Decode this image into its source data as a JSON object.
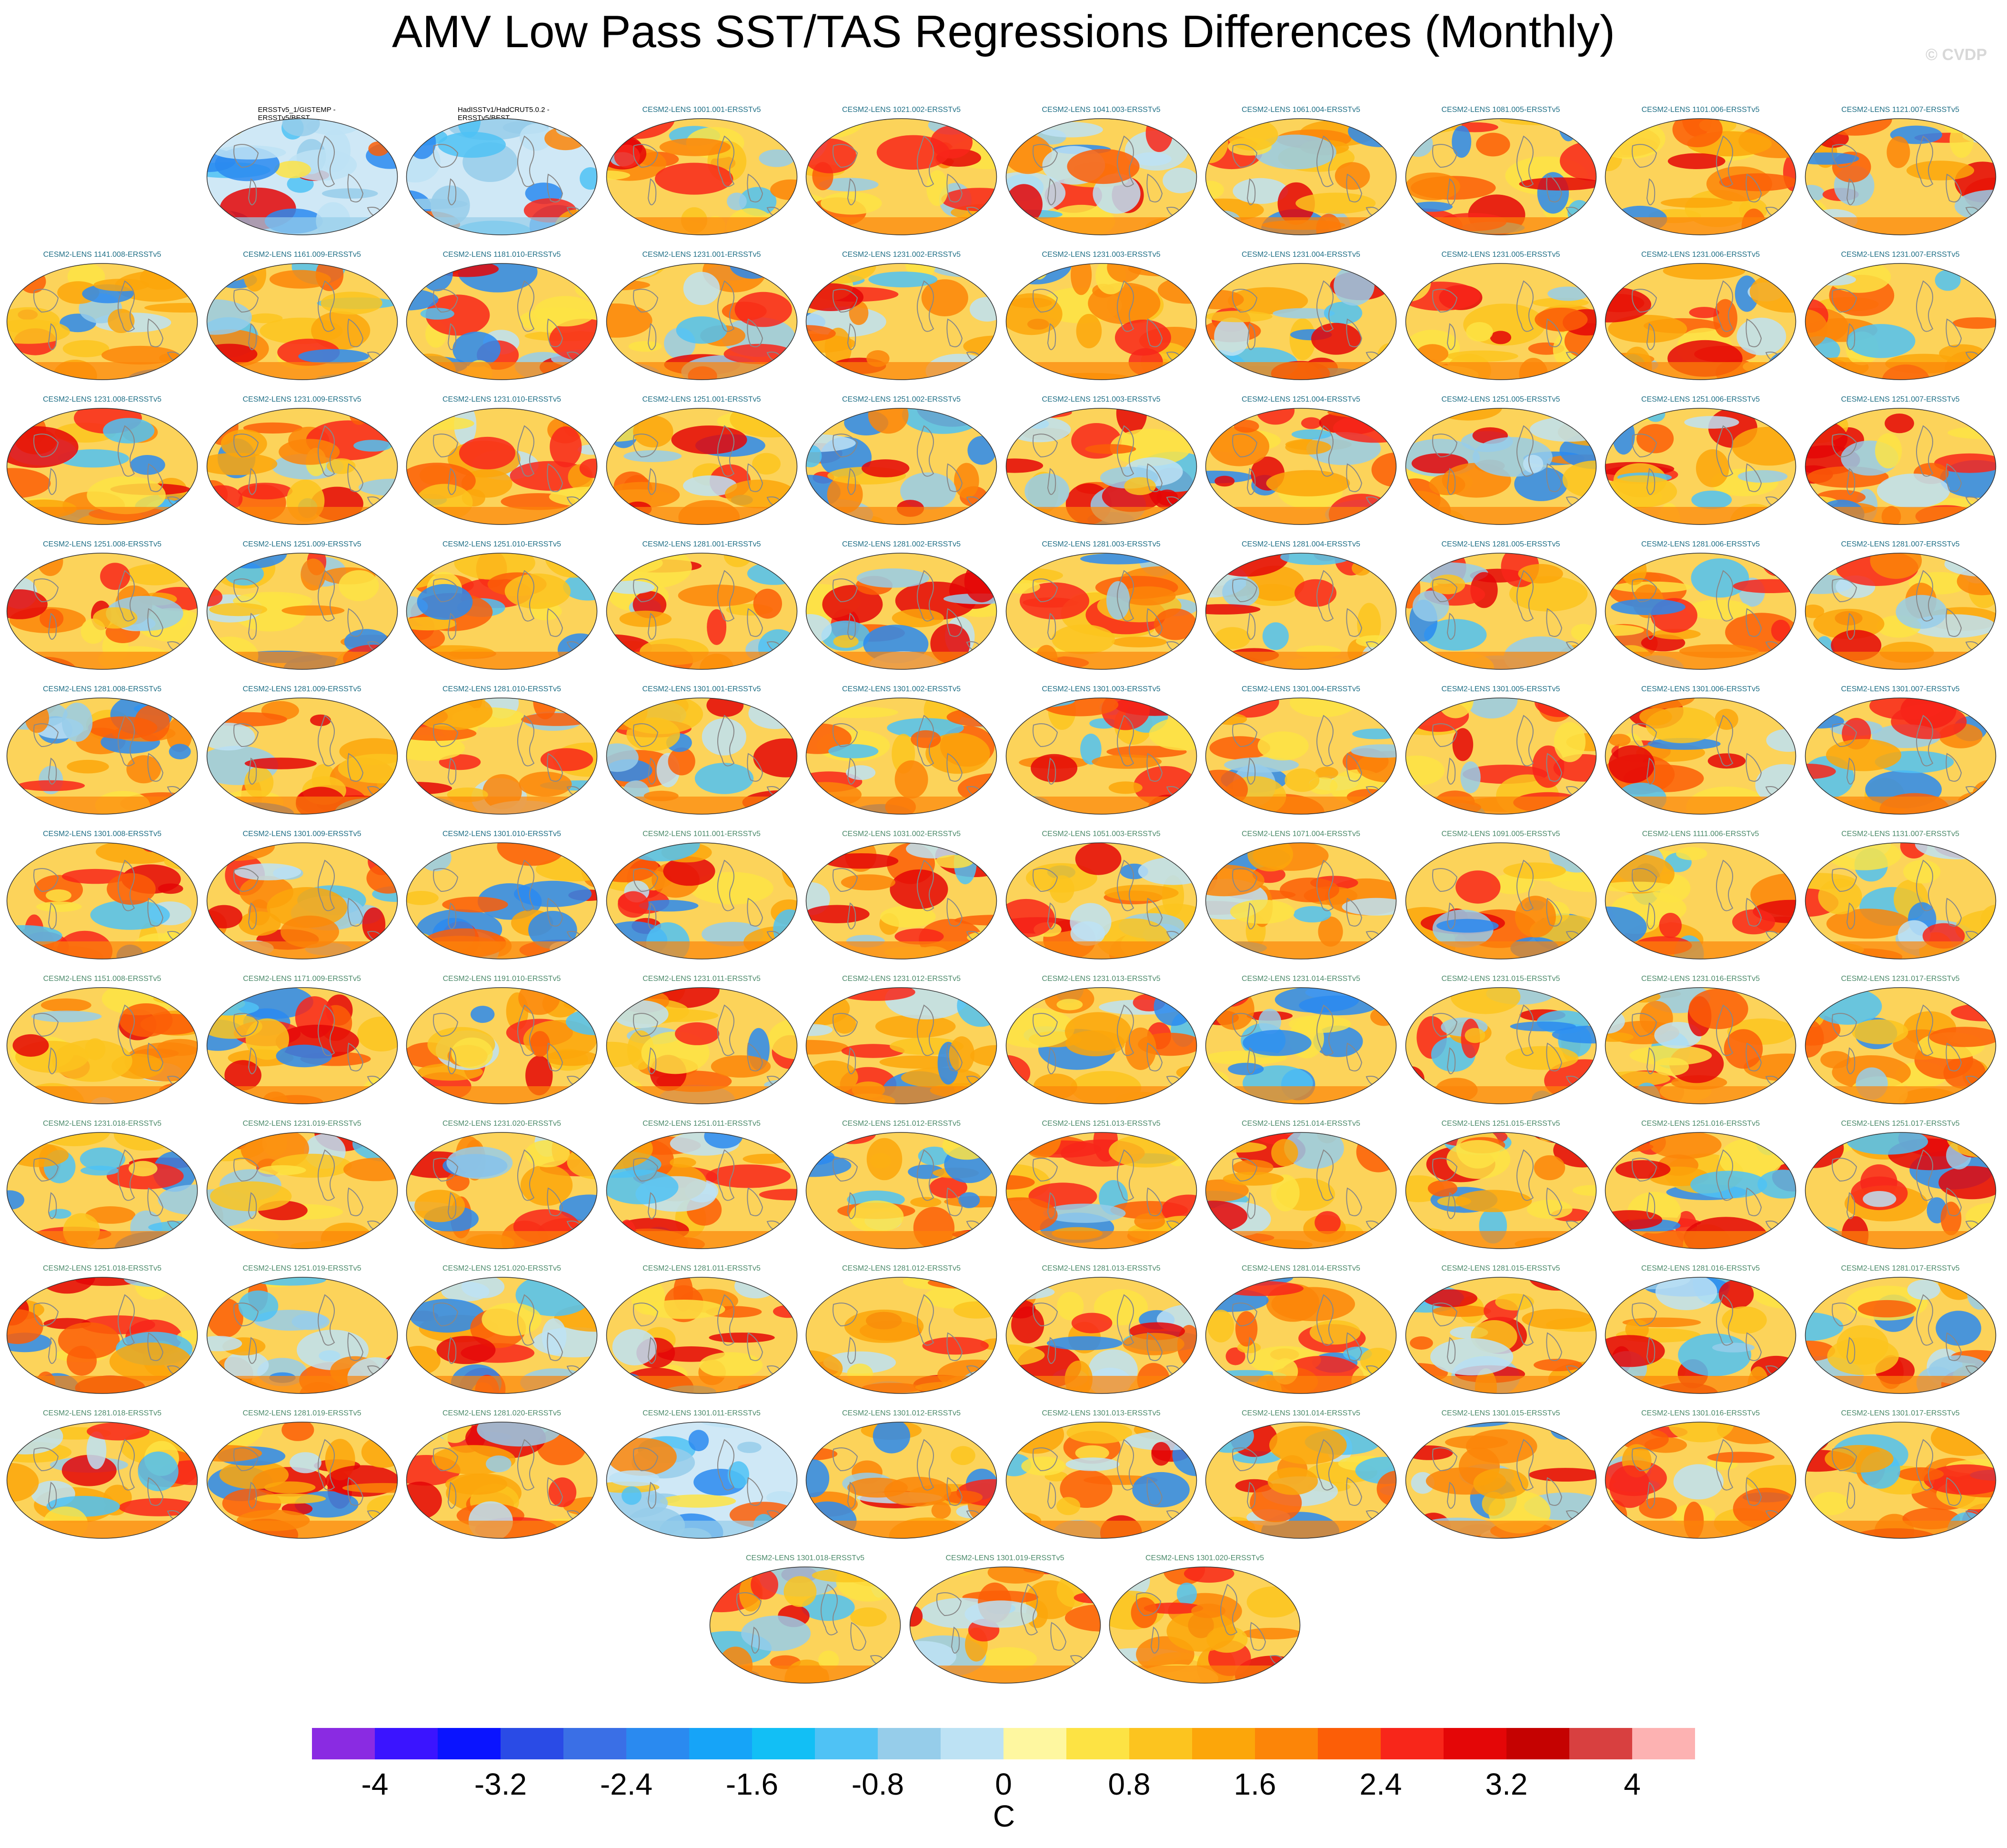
{
  "title": "AMV Low Pass SST/TAS Regressions Differences (Monthly)",
  "watermark": "© CVDP",
  "unit": "C",
  "colorbar": {
    "ticks": [
      "-4",
      "-3.2",
      "-2.4",
      "-1.6",
      "-0.8",
      "0",
      "0.8",
      "1.6",
      "2.4",
      "3.2",
      "4"
    ],
    "colors": [
      "#8a2be2",
      "#3b14ff",
      "#0a14ff",
      "#2a4be6",
      "#3a6fe6",
      "#2a8af0",
      "#16a4f8",
      "#12bff5",
      "#4fc2f5",
      "#96cdea",
      "#bde2f4",
      "#fef7a0",
      "#fde344",
      "#fcc41f",
      "#fca60a",
      "#fc8508",
      "#fc5e07",
      "#f8261a",
      "#e40607",
      "#c50201",
      "#d84040",
      "#fdb2b2"
    ]
  },
  "rows": [
    [
      {
        "label": "ERSSTv5_1/GISTEMP -\nERSSTv5/BEST",
        "kind": "obs"
      },
      {
        "label": "HadISSTv1/HadCRUT5.0.2 -\nERSSTv5/BEST",
        "kind": "obs"
      },
      {
        "label": "CESM2-LENS 1001.001-ERSSTv5"
      },
      {
        "label": "CESM2-LENS 1021.002-ERSSTv5"
      },
      {
        "label": "CESM2-LENS 1041.003-ERSSTv5"
      },
      {
        "label": "CESM2-LENS 1061.004-ERSSTv5"
      },
      {
        "label": "CESM2-LENS 1081.005-ERSSTv5"
      },
      {
        "label": "CESM2-LENS 1101.006-ERSSTv5"
      },
      {
        "label": "CESM2-LENS 1121.007-ERSSTv5"
      }
    ],
    [
      {
        "label": "CESM2-LENS 1141.008-ERSSTv5"
      },
      {
        "label": "CESM2-LENS 1161.009-ERSSTv5"
      },
      {
        "label": "CESM2-LENS 1181.010-ERSSTv5"
      },
      {
        "label": "CESM2-LENS 1231.001-ERSSTv5"
      },
      {
        "label": "CESM2-LENS 1231.002-ERSSTv5"
      },
      {
        "label": "CESM2-LENS 1231.003-ERSSTv5"
      },
      {
        "label": "CESM2-LENS 1231.004-ERSSTv5"
      },
      {
        "label": "CESM2-LENS 1231.005-ERSSTv5"
      },
      {
        "label": "CESM2-LENS 1231.006-ERSSTv5"
      },
      {
        "label": "CESM2-LENS 1231.007-ERSSTv5"
      }
    ],
    [
      {
        "label": "CESM2-LENS 1231.008-ERSSTv5"
      },
      {
        "label": "CESM2-LENS 1231.009-ERSSTv5"
      },
      {
        "label": "CESM2-LENS 1231.010-ERSSTv5"
      },
      {
        "label": "CESM2-LENS 1251.001-ERSSTv5"
      },
      {
        "label": "CESM2-LENS 1251.002-ERSSTv5"
      },
      {
        "label": "CESM2-LENS 1251.003-ERSSTv5"
      },
      {
        "label": "CESM2-LENS 1251.004-ERSSTv5"
      },
      {
        "label": "CESM2-LENS 1251.005-ERSSTv5"
      },
      {
        "label": "CESM2-LENS 1251.006-ERSSTv5"
      },
      {
        "label": "CESM2-LENS 1251.007-ERSSTv5"
      }
    ],
    [
      {
        "label": "CESM2-LENS 1251.008-ERSSTv5"
      },
      {
        "label": "CESM2-LENS 1251.009-ERSSTv5"
      },
      {
        "label": "CESM2-LENS 1251.010-ERSSTv5"
      },
      {
        "label": "CESM2-LENS 1281.001-ERSSTv5"
      },
      {
        "label": "CESM2-LENS 1281.002-ERSSTv5"
      },
      {
        "label": "CESM2-LENS 1281.003-ERSSTv5"
      },
      {
        "label": "CESM2-LENS 1281.004-ERSSTv5"
      },
      {
        "label": "CESM2-LENS 1281.005-ERSSTv5"
      },
      {
        "label": "CESM2-LENS 1281.006-ERSSTv5"
      },
      {
        "label": "CESM2-LENS 1281.007-ERSSTv5"
      }
    ],
    [
      {
        "label": "CESM2-LENS 1281.008-ERSSTv5"
      },
      {
        "label": "CESM2-LENS 1281.009-ERSSTv5"
      },
      {
        "label": "CESM2-LENS 1281.010-ERSSTv5"
      },
      {
        "label": "CESM2-LENS 1301.001-ERSSTv5"
      },
      {
        "label": "CESM2-LENS 1301.002-ERSSTv5"
      },
      {
        "label": "CESM2-LENS 1301.003-ERSSTv5"
      },
      {
        "label": "CESM2-LENS 1301.004-ERSSTv5"
      },
      {
        "label": "CESM2-LENS 1301.005-ERSSTv5"
      },
      {
        "label": "CESM2-LENS 1301.006-ERSSTv5"
      },
      {
        "label": "CESM2-LENS 1301.007-ERSSTv5"
      }
    ],
    [
      {
        "label": "CESM2-LENS 1301.008-ERSSTv5"
      },
      {
        "label": "CESM2-LENS 1301.009-ERSSTv5"
      },
      {
        "label": "CESM2-LENS 1301.010-ERSSTv5"
      },
      {
        "label": "CESM2-LENS 1011.001-ERSSTv5",
        "kind": "faded"
      },
      {
        "label": "CESM2-LENS 1031.002-ERSSTv5",
        "kind": "faded"
      },
      {
        "label": "CESM2-LENS 1051.003-ERSSTv5",
        "kind": "faded"
      },
      {
        "label": "CESM2-LENS 1071.004-ERSSTv5",
        "kind": "faded"
      },
      {
        "label": "CESM2-LENS 1091.005-ERSSTv5",
        "kind": "faded"
      },
      {
        "label": "CESM2-LENS 1111.006-ERSSTv5",
        "kind": "faded"
      },
      {
        "label": "CESM2-LENS 1131.007-ERSSTv5",
        "kind": "faded"
      }
    ],
    [
      {
        "label": "CESM2-LENS 1151.008-ERSSTv5",
        "kind": "faded"
      },
      {
        "label": "CESM2-LENS 1171.009-ERSSTv5",
        "kind": "faded"
      },
      {
        "label": "CESM2-LENS 1191.010-ERSSTv5",
        "kind": "faded"
      },
      {
        "label": "CESM2-LENS 1231.011-ERSSTv5",
        "kind": "faded"
      },
      {
        "label": "CESM2-LENS 1231.012-ERSSTv5",
        "kind": "faded"
      },
      {
        "label": "CESM2-LENS 1231.013-ERSSTv5",
        "kind": "faded"
      },
      {
        "label": "CESM2-LENS 1231.014-ERSSTv5",
        "kind": "faded"
      },
      {
        "label": "CESM2-LENS 1231.015-ERSSTv5",
        "kind": "faded"
      },
      {
        "label": "CESM2-LENS 1231.016-ERSSTv5",
        "kind": "faded"
      },
      {
        "label": "CESM2-LENS 1231.017-ERSSTv5",
        "kind": "faded"
      }
    ],
    [
      {
        "label": "CESM2-LENS 1231.018-ERSSTv5",
        "kind": "faded"
      },
      {
        "label": "CESM2-LENS 1231.019-ERSSTv5",
        "kind": "faded"
      },
      {
        "label": "CESM2-LENS 1231.020-ERSSTv5",
        "kind": "faded"
      },
      {
        "label": "CESM2-LENS 1251.011-ERSSTv5",
        "kind": "faded"
      },
      {
        "label": "CESM2-LENS 1251.012-ERSSTv5",
        "kind": "faded"
      },
      {
        "label": "CESM2-LENS 1251.013-ERSSTv5",
        "kind": "faded"
      },
      {
        "label": "CESM2-LENS 1251.014-ERSSTv5",
        "kind": "faded"
      },
      {
        "label": "CESM2-LENS 1251.015-ERSSTv5",
        "kind": "faded"
      },
      {
        "label": "CESM2-LENS 1251.016-ERSSTv5",
        "kind": "faded"
      },
      {
        "label": "CESM2-LENS 1251.017-ERSSTv5",
        "kind": "faded"
      }
    ],
    [
      {
        "label": "CESM2-LENS 1251.018-ERSSTv5",
        "kind": "faded"
      },
      {
        "label": "CESM2-LENS 1251.019-ERSSTv5",
        "kind": "faded"
      },
      {
        "label": "CESM2-LENS 1251.020-ERSSTv5",
        "kind": "faded"
      },
      {
        "label": "CESM2-LENS 1281.011-ERSSTv5",
        "kind": "faded"
      },
      {
        "label": "CESM2-LENS 1281.012-ERSSTv5",
        "kind": "faded"
      },
      {
        "label": "CESM2-LENS 1281.013-ERSSTv5",
        "kind": "faded"
      },
      {
        "label": "CESM2-LENS 1281.014-ERSSTv5",
        "kind": "faded"
      },
      {
        "label": "CESM2-LENS 1281.015-ERSSTv5",
        "kind": "faded"
      },
      {
        "label": "CESM2-LENS 1281.016-ERSSTv5",
        "kind": "faded"
      },
      {
        "label": "CESM2-LENS 1281.017-ERSSTv5",
        "kind": "faded"
      }
    ],
    [
      {
        "label": "CESM2-LENS 1281.018-ERSSTv5",
        "kind": "faded"
      },
      {
        "label": "CESM2-LENS 1281.019-ERSSTv5",
        "kind": "faded"
      },
      {
        "label": "CESM2-LENS 1281.020-ERSSTv5",
        "kind": "faded"
      },
      {
        "label": "CESM2-LENS 1301.011-ERSSTv5",
        "kind": "faded"
      },
      {
        "label": "CESM2-LENS 1301.012-ERSSTv5",
        "kind": "faded"
      },
      {
        "label": "CESM2-LENS 1301.013-ERSSTv5",
        "kind": "faded"
      },
      {
        "label": "CESM2-LENS 1301.014-ERSSTv5",
        "kind": "faded"
      },
      {
        "label": "CESM2-LENS 1301.015-ERSSTv5",
        "kind": "faded"
      },
      {
        "label": "CESM2-LENS 1301.016-ERSSTv5",
        "kind": "faded"
      },
      {
        "label": "CESM2-LENS 1301.017-ERSSTv5",
        "kind": "faded"
      }
    ],
    [
      {
        "label": "CESM2-LENS 1301.018-ERSSTv5",
        "kind": "faded"
      },
      {
        "label": "CESM2-LENS 1301.019-ERSSTv5",
        "kind": "faded"
      },
      {
        "label": "CESM2-LENS 1301.020-ERSSTv5",
        "kind": "faded"
      }
    ]
  ]
}
